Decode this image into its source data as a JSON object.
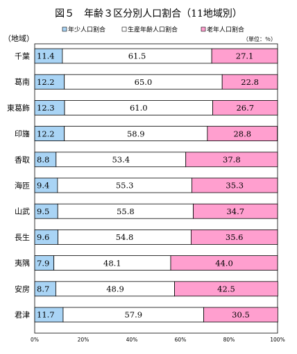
{
  "chart_data": {
    "type": "bar",
    "orientation": "horizontal",
    "stacked": "percent",
    "title": "図５　年齢３区分別人口割合（11地域別）",
    "unit_note": "（単位：％）",
    "category_axis_title": "（地域）",
    "categories": [
      "千葉",
      "葛南",
      "東葛飾",
      "印旛",
      "香取",
      "海匝",
      "山武",
      "長生",
      "夷隅",
      "安房",
      "君津"
    ],
    "series": [
      {
        "name": "年少人口割合",
        "color": "#a9d4f5",
        "values": [
          11.4,
          12.2,
          12.3,
          12.2,
          8.8,
          9.4,
          9.5,
          9.6,
          7.9,
          8.7,
          11.7
        ],
        "labels": [
          "11.4",
          "12.2",
          "12.3",
          "12.2",
          "8.8",
          "9.4",
          "9.5",
          "9.6",
          "7.9",
          "8.7",
          "11.7"
        ]
      },
      {
        "name": "生産年齢人口割合",
        "color": "#ffffff",
        "values": [
          61.5,
          65.0,
          61.0,
          58.9,
          53.4,
          55.3,
          55.8,
          54.8,
          48.1,
          48.9,
          57.9
        ],
        "labels": [
          "61.5",
          "65.0",
          "61.0",
          "58.9",
          "53.4",
          "55.3",
          "55.8",
          "54.8",
          "48.1",
          "48.9",
          "57.9"
        ]
      },
      {
        "name": "老年人口割合",
        "color": "#ff9fcf",
        "values": [
          27.1,
          22.8,
          26.7,
          28.8,
          37.8,
          35.3,
          34.7,
          35.6,
          44.0,
          42.5,
          30.5
        ],
        "labels": [
          "27.1",
          "22.8",
          "26.7",
          "28.8",
          "37.8",
          "35.3",
          "34.7",
          "35.6",
          "44.0",
          "42.5",
          "30.5"
        ]
      }
    ],
    "xlim": [
      0,
      100
    ],
    "xticks": [
      "0%",
      "20%",
      "40%",
      "60%",
      "80%",
      "100%"
    ],
    "legend_position": "top",
    "grid": false
  }
}
